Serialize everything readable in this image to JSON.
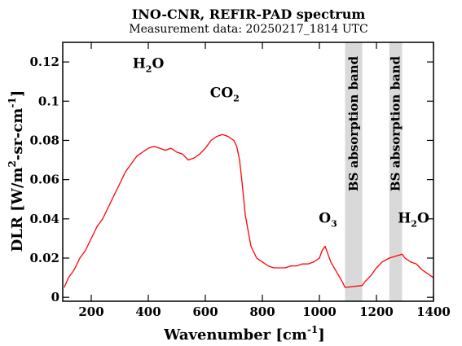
{
  "chart_data": {
    "type": "line",
    "title": "INO-CNR, REFIR-PAD spectrum",
    "subtitle": "Measurement data: 20250217_1814 UTC",
    "xlabel": {
      "main": "Wavenumber [cm",
      "sup": "-1",
      "tail": "]"
    },
    "ylabel": {
      "p1": "DLR [W/m",
      "sup1": "2",
      "p2": "-sr-cm",
      "sup2": "-1",
      "p3": "]"
    },
    "xlim": [
      100,
      1400
    ],
    "ylim": [
      -0.002,
      0.13
    ],
    "xticks": [
      200,
      400,
      600,
      800,
      1000,
      1200,
      1400
    ],
    "xtick_labels": [
      "200",
      "400",
      "600",
      "800",
      "1000",
      "1200",
      "1400"
    ],
    "yticks": [
      0,
      0.02,
      0.04,
      0.06,
      0.08,
      0.1,
      0.12
    ],
    "ytick_labels": [
      "0",
      "0.02",
      "0.04",
      "0.06",
      "0.08",
      "0.1",
      "0.12"
    ],
    "grid": false,
    "line_color": "#ff0000",
    "band_color": "#d9d9d9",
    "bands": [
      {
        "x0": 1090,
        "x1": 1150,
        "label": "BS absorption band"
      },
      {
        "x0": 1245,
        "x1": 1290,
        "label": "BS absorption band"
      }
    ],
    "annotations": [
      {
        "x": 400,
        "y": 0.117,
        "main": "H",
        "sub": "2",
        "tail": "O"
      },
      {
        "x": 668,
        "y": 0.102,
        "main": "CO",
        "sub": "2",
        "tail": ""
      },
      {
        "x": 1030,
        "y": 0.038,
        "main": "O",
        "sub": "3",
        "tail": ""
      },
      {
        "x": 1330,
        "y": 0.038,
        "main": "H",
        "sub": "2",
        "tail": "O"
      }
    ],
    "series": [
      {
        "x": [
          105,
          120,
          140,
          160,
          180,
          200,
          220,
          240,
          260,
          280,
          300,
          320,
          340,
          360,
          380,
          400,
          420,
          440,
          460,
          480,
          500,
          520,
          540,
          560,
          580,
          600,
          620,
          640,
          660,
          680,
          700,
          710,
          720,
          730,
          740,
          760,
          780,
          800,
          820,
          840,
          860,
          880,
          900,
          920,
          940,
          960,
          980,
          1000,
          1010,
          1020,
          1030,
          1040,
          1060,
          1080,
          1090,
          1150,
          1160,
          1180,
          1200,
          1220,
          1245,
          1290,
          1300,
          1320,
          1340,
          1360,
          1380,
          1400
        ],
        "y": [
          0.005,
          0.01,
          0.014,
          0.02,
          0.024,
          0.03,
          0.036,
          0.04,
          0.046,
          0.052,
          0.058,
          0.064,
          0.068,
          0.072,
          0.074,
          0.076,
          0.077,
          0.076,
          0.075,
          0.076,
          0.074,
          0.073,
          0.07,
          0.071,
          0.073,
          0.076,
          0.08,
          0.082,
          0.083,
          0.082,
          0.08,
          0.077,
          0.07,
          0.057,
          0.042,
          0.026,
          0.02,
          0.018,
          0.016,
          0.015,
          0.015,
          0.015,
          0.016,
          0.016,
          0.017,
          0.017,
          0.018,
          0.02,
          0.024,
          0.026,
          0.022,
          0.018,
          0.013,
          0.008,
          0.005,
          0.006,
          0.008,
          0.011,
          0.015,
          0.018,
          0.02,
          0.022,
          0.02,
          0.018,
          0.017,
          0.014,
          0.012,
          0.01
        ]
      }
    ]
  }
}
